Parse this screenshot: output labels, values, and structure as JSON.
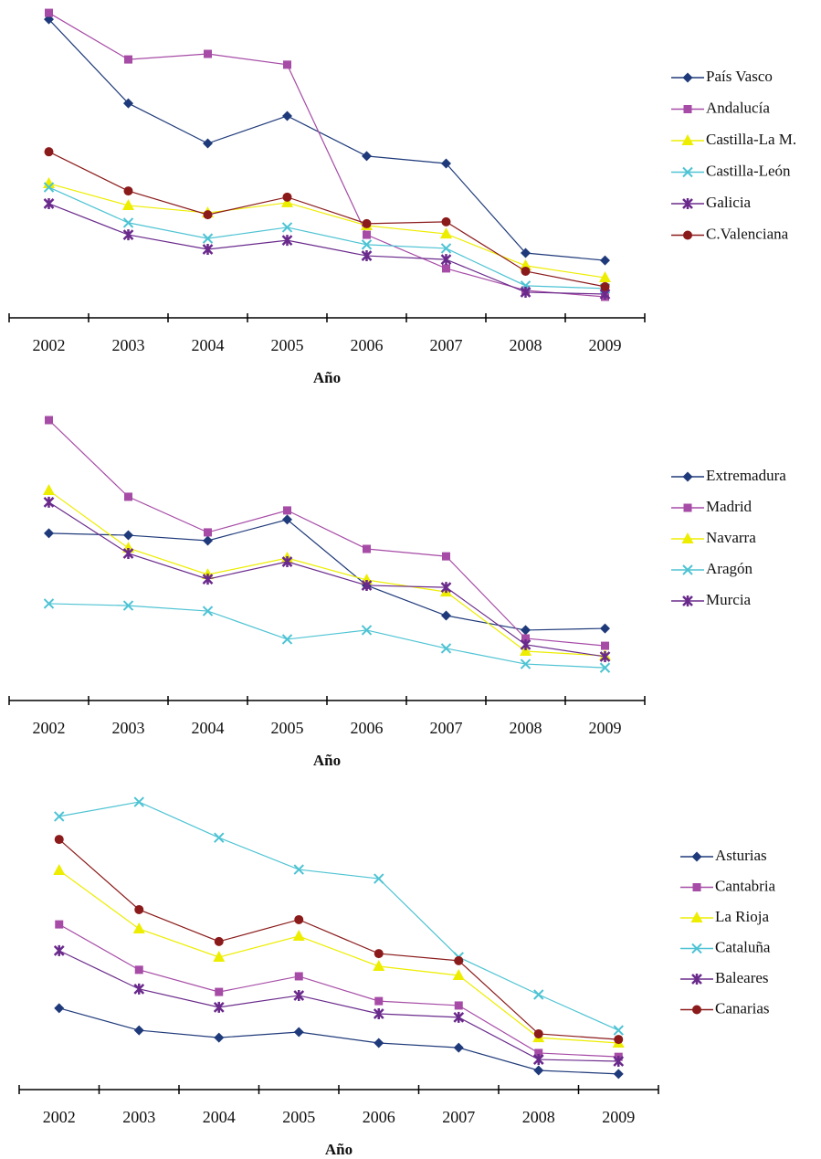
{
  "chart_data": [
    {
      "type": "line",
      "x_label": "Año",
      "categories": [
        "2002",
        "2003",
        "2004",
        "2005",
        "2006",
        "2007",
        "2008",
        "2009"
      ],
      "ylim": [
        0,
        100
      ],
      "series": [
        {
          "name": "País Vasco",
          "color": "#1f3a7a",
          "marker": "diamond",
          "values": [
            96.7,
            69.5,
            56.5,
            65.4,
            52.4,
            50.0,
            21.0,
            18.6
          ]
        },
        {
          "name": "Andalucía",
          "color": "#a64ca6",
          "marker": "square",
          "values": [
            98.8,
            83.7,
            85.5,
            82.0,
            26.9,
            16.0,
            8.9,
            6.8
          ]
        },
        {
          "name": "Castilla-La M.",
          "color": "#eded00",
          "marker": "triangle",
          "values": [
            43.5,
            36.4,
            34.0,
            37.3,
            29.9,
            27.2,
            16.9,
            13.0
          ]
        },
        {
          "name": "Castilla-León",
          "color": "#4dc3d3",
          "marker": "x",
          "values": [
            42.3,
            30.8,
            25.7,
            29.3,
            23.7,
            22.5,
            10.4,
            9.5
          ]
        },
        {
          "name": "Galicia",
          "color": "#6a2a8c",
          "marker": "asterisk",
          "values": [
            37.0,
            26.9,
            22.2,
            25.1,
            20.1,
            18.9,
            8.3,
            7.7
          ]
        },
        {
          "name": "C.Valenciana",
          "color": "#8b1a1a",
          "marker": "circle",
          "values": [
            53.8,
            41.1,
            33.4,
            39.1,
            30.5,
            31.1,
            15.1,
            10.1
          ]
        }
      ]
    },
    {
      "type": "line",
      "x_label": "Año",
      "categories": [
        "2002",
        "2003",
        "2004",
        "2005",
        "2006",
        "2007",
        "2008",
        "2009"
      ],
      "ylim": [
        0,
        100
      ],
      "series": [
        {
          "name": "Extremadura",
          "color": "#1f3a7a",
          "marker": "diamond",
          "values": [
            58.7,
            58.0,
            56.1,
            63.5,
            40.4,
            29.8,
            24.7,
            25.3
          ]
        },
        {
          "name": "Madrid",
          "color": "#a64ca6",
          "marker": "square",
          "values": [
            98.4,
            71.5,
            59.0,
            66.7,
            53.2,
            50.6,
            21.8,
            19.2
          ]
        },
        {
          "name": "Navarra",
          "color": "#eded00",
          "marker": "triangle",
          "values": [
            73.7,
            53.5,
            44.2,
            50.0,
            42.3,
            38.1,
            17.3,
            15.7
          ]
        },
        {
          "name": "Aragón",
          "color": "#4dc3d3",
          "marker": "x",
          "values": [
            34.0,
            33.3,
            31.4,
            21.5,
            24.7,
            18.3,
            12.8,
            11.5
          ]
        },
        {
          "name": "Murcia",
          "color": "#6a2a8c",
          "marker": "asterisk",
          "values": [
            69.6,
            51.6,
            42.6,
            48.7,
            40.4,
            39.7,
            19.6,
            15.4
          ]
        }
      ]
    },
    {
      "type": "line",
      "x_label": "Año",
      "categories": [
        "2002",
        "2003",
        "2004",
        "2005",
        "2006",
        "2007",
        "2008",
        "2009"
      ],
      "ylim": [
        0,
        100
      ],
      "series": [
        {
          "name": "Asturias",
          "color": "#1f3a7a",
          "marker": "diamond",
          "values": [
            27.6,
            20.1,
            17.6,
            19.5,
            15.8,
            14.2,
            6.5,
            5.3
          ]
        },
        {
          "name": "Cantabria",
          "color": "#a64ca6",
          "marker": "square",
          "values": [
            56.0,
            40.6,
            33.1,
            38.4,
            30.0,
            28.5,
            12.4,
            11.1
          ]
        },
        {
          "name": "La Rioja",
          "color": "#eded00",
          "marker": "triangle",
          "values": [
            74.3,
            54.5,
            44.9,
            52.0,
            41.8,
            38.7,
            17.6,
            15.8
          ]
        },
        {
          "name": "Cataluña",
          "color": "#4dc3d3",
          "marker": "x",
          "values": [
            92.6,
            97.5,
            85.4,
            74.6,
            71.5,
            44.9,
            32.2,
            20.1
          ]
        },
        {
          "name": "Baleares",
          "color": "#6a2a8c",
          "marker": "asterisk",
          "values": [
            47.1,
            34.1,
            27.9,
            31.9,
            25.7,
            24.5,
            10.2,
            9.6
          ]
        },
        {
          "name": "Canarias",
          "color": "#8b1a1a",
          "marker": "circle",
          "values": [
            84.8,
            61.0,
            50.2,
            57.6,
            46.1,
            43.7,
            18.9,
            17.0
          ]
        }
      ]
    }
  ]
}
